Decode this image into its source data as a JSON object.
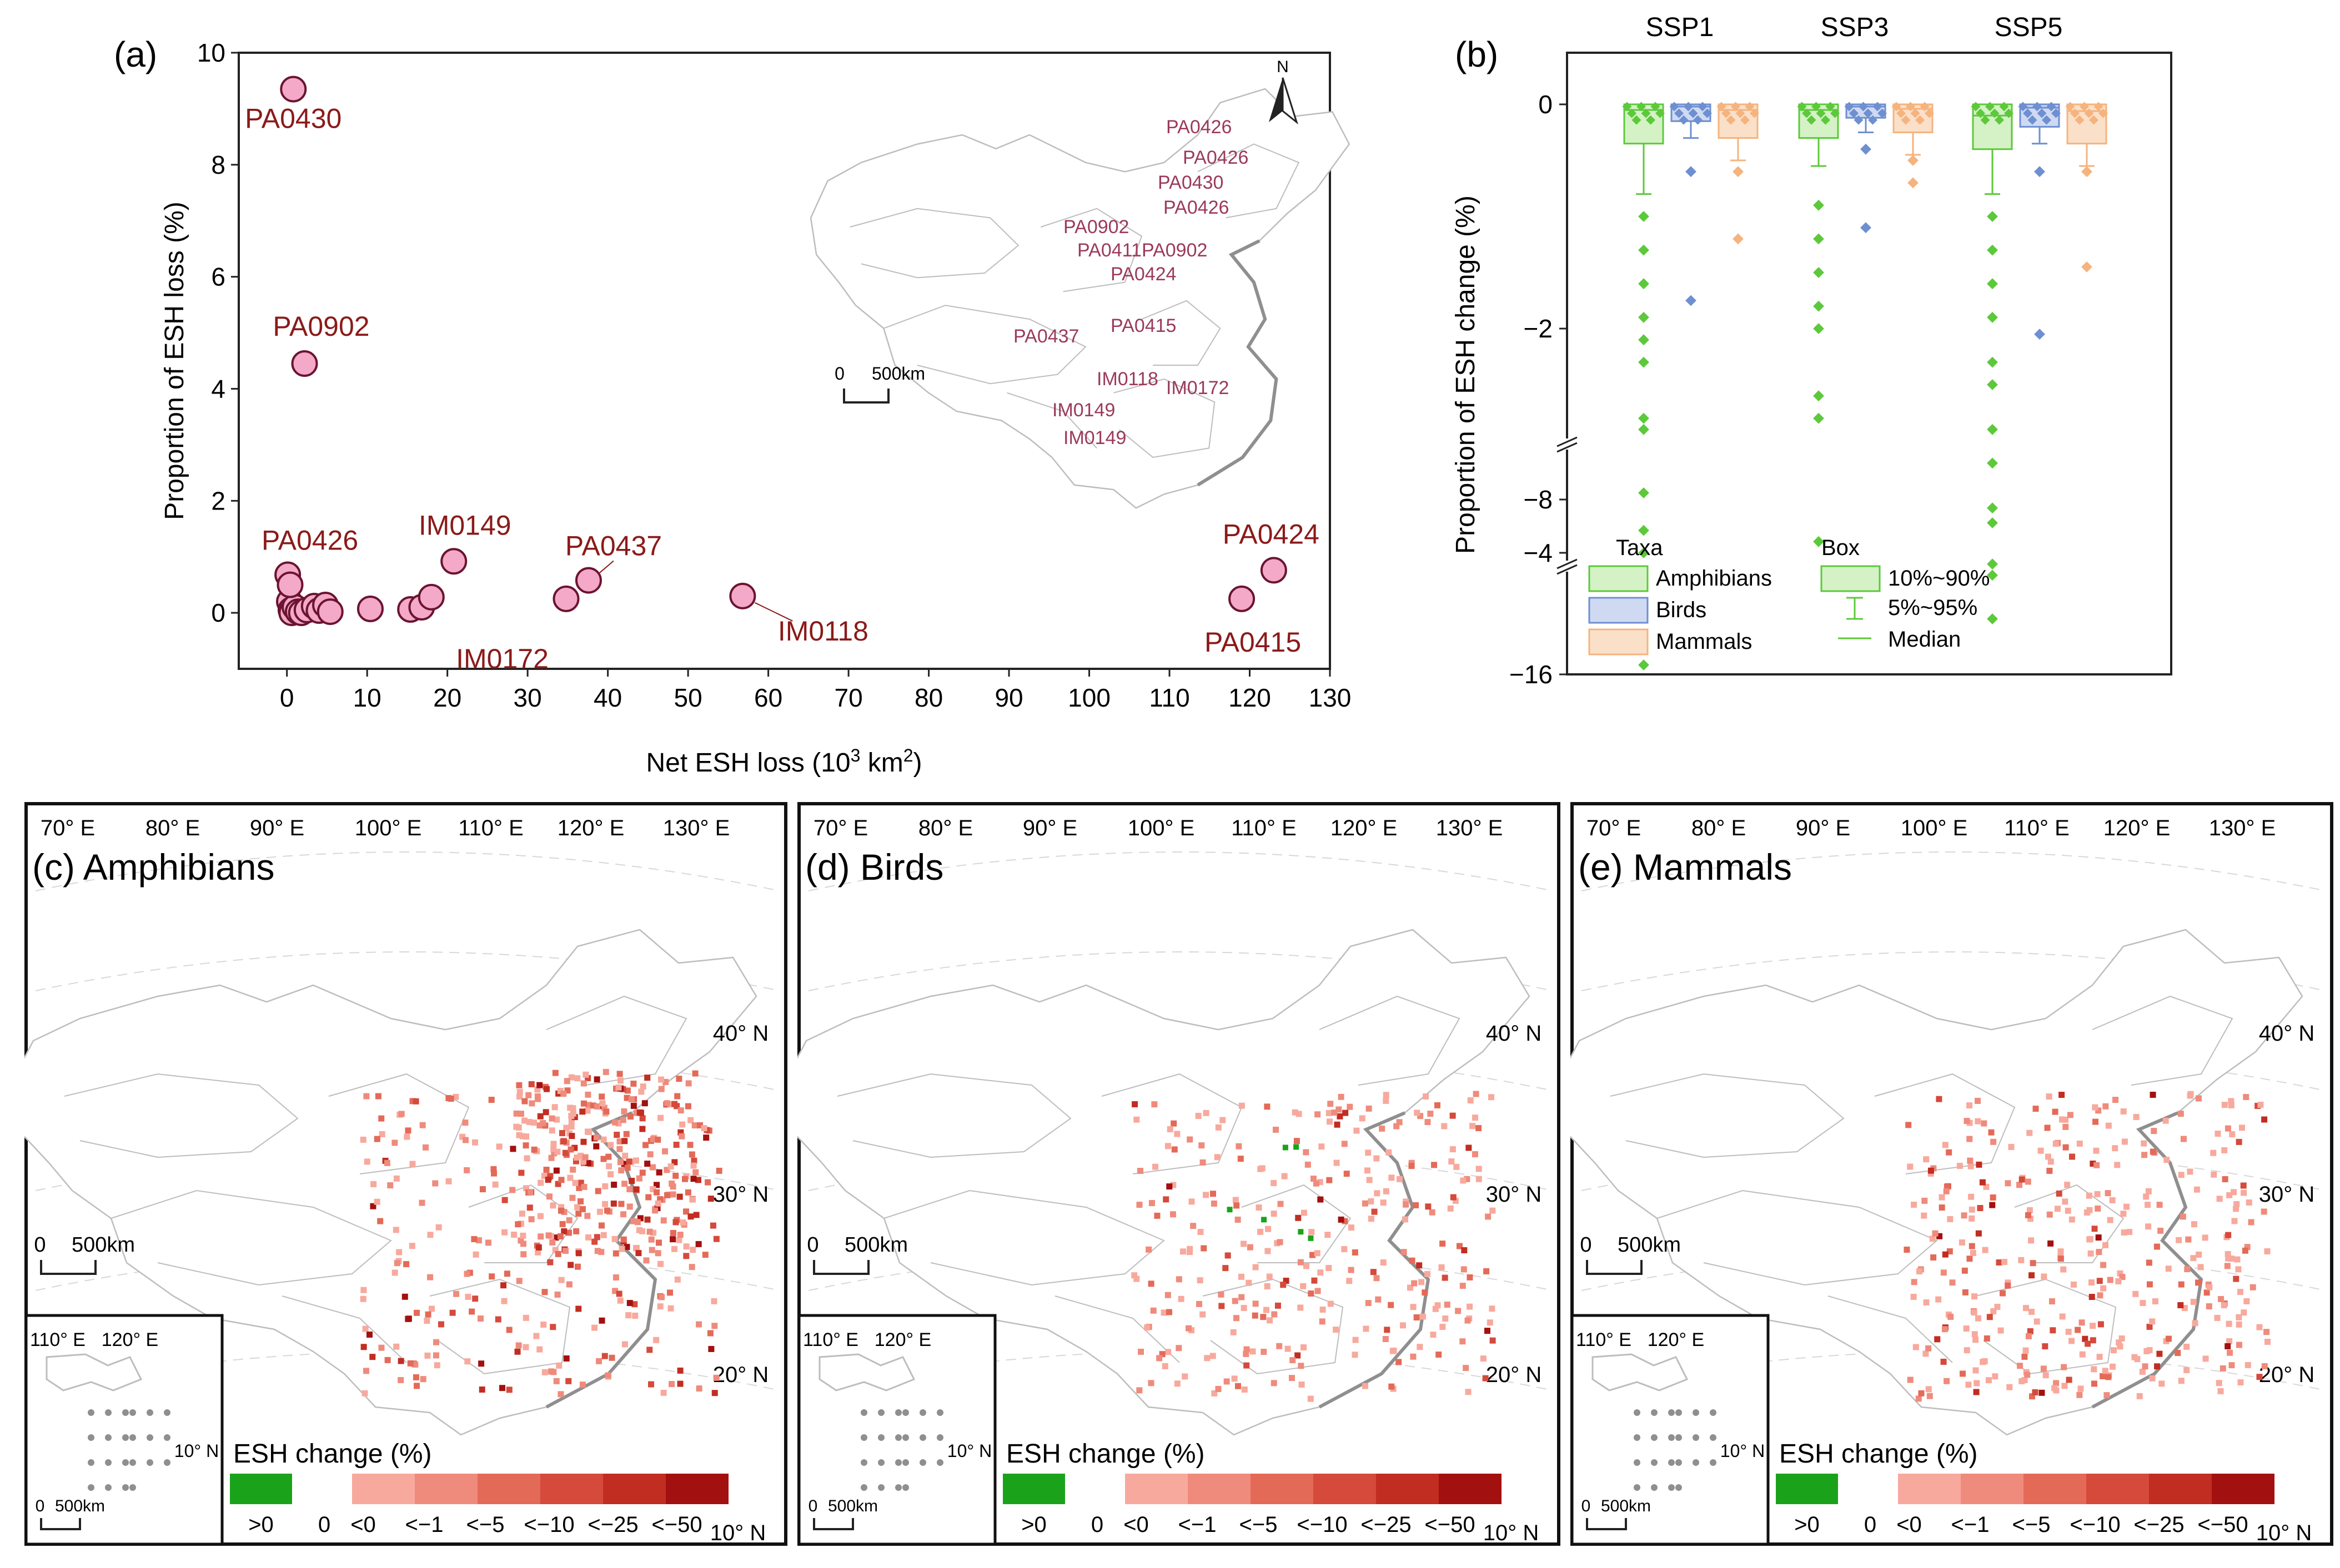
{
  "colors": {
    "point_fill": "#f4a9c8",
    "point_edge": "#6b1430",
    "label_text": "#8b1a1a",
    "map_label": "#9b3a5a",
    "map_line": "#bdbdbd",
    "coast": "#8f8f8f",
    "amph": "#5cc93a",
    "amph_fill": "#d4f2c6",
    "birds": "#6e8fd1",
    "birds_fill": "#cfdaf2",
    "mamm": "#f5b37e",
    "mamm_fill": "#fbe0c9",
    "pos": "#1aa31a",
    "neg": [
      "#f8a99d",
      "#ef8b7c",
      "#e46a58",
      "#d54a3b",
      "#c22d22",
      "#a31010"
    ]
  },
  "chart_data": [
    {
      "panel": "(a)",
      "type": "scatter",
      "xlabel": "Net ESH loss (10",
      "xlabel_sup": "3",
      "xlabel_tail": " km",
      "xlabel_sup2": "2",
      "xlabel_end": ")",
      "ylabel": "Proportion of ESH loss (%)",
      "xlim": [
        -6,
        130
      ],
      "ylim": [
        -1,
        10
      ],
      "xticks": [
        0,
        10,
        20,
        30,
        40,
        50,
        60,
        70,
        80,
        90,
        100,
        110,
        120,
        130
      ],
      "yticks": [
        0,
        2,
        4,
        6,
        8,
        10
      ],
      "points": [
        {
          "x": 0.8,
          "y": 9.35,
          "label": "PA0430"
        },
        {
          "x": 2.2,
          "y": 4.45,
          "label": "PA0902"
        },
        {
          "x": 0.1,
          "y": 0.68,
          "label": "PA0426"
        },
        {
          "x": 20.8,
          "y": 0.92,
          "label": "IM0149"
        },
        {
          "x": 34.8,
          "y": 0.25,
          "label": "IM0172"
        },
        {
          "x": 37.6,
          "y": 0.58,
          "label": "PA0437"
        },
        {
          "x": 56.8,
          "y": 0.3,
          "label": "IM0118"
        },
        {
          "x": 123,
          "y": 0.76,
          "label": "PA0424"
        },
        {
          "x": 119,
          "y": 0.25,
          "label": "PA0415"
        },
        {
          "x": 0.3,
          "y": 0.2,
          "label": ""
        },
        {
          "x": 0.5,
          "y": 0.05,
          "label": ""
        },
        {
          "x": 0.6,
          "y": 0.0,
          "label": ""
        },
        {
          "x": 1.0,
          "y": 0.1,
          "label": ""
        },
        {
          "x": 1.4,
          "y": 0.02,
          "label": ""
        },
        {
          "x": 1.8,
          "y": 0.0,
          "label": ""
        },
        {
          "x": 2.5,
          "y": 0.05,
          "label": ""
        },
        {
          "x": 3.4,
          "y": 0.12,
          "label": ""
        },
        {
          "x": 4.0,
          "y": 0.04,
          "label": ""
        },
        {
          "x": 4.8,
          "y": 0.14,
          "label": ""
        },
        {
          "x": 5.4,
          "y": 0.02,
          "label": ""
        },
        {
          "x": 10.4,
          "y": 0.07,
          "label": ""
        },
        {
          "x": 15.4,
          "y": 0.06,
          "label": ""
        },
        {
          "x": 16.8,
          "y": 0.1,
          "label": ""
        },
        {
          "x": 18.0,
          "y": 0.28,
          "label": ""
        },
        {
          "x": 0.4,
          "y": 0.5,
          "label": ""
        }
      ],
      "inset_labels": [
        "PA0426",
        "PA0426",
        "PA0430",
        "PA0426",
        "PA0902",
        "PA0411PA0902",
        "PA0424",
        "PA0415",
        "PA0437",
        "IM0118",
        "IM0172",
        "IM0149",
        "IM0149"
      ],
      "inset_north": "N",
      "inset_scale": [
        "0",
        "500km"
      ]
    },
    {
      "panel": "(b)",
      "type": "box",
      "ylabel": "Proportion of ESH change (%)",
      "groups": [
        "SSP1",
        "SSP3",
        "SSP5"
      ],
      "yticks_upper": [
        0,
        -2,
        -4
      ],
      "ytick_mid": -8,
      "ytick_bottom": -16,
      "series": [
        {
          "name": "Amphibians",
          "key": "amph",
          "boxes": [
            {
              "q10": -0.35,
              "q90": 0.0,
              "p5": -0.8,
              "median": -0.05,
              "outliers": [
                -1.0,
                -1.3,
                -1.6,
                -1.9,
                -2.1,
                -2.3,
                -2.8,
                -2.9,
                -3.8,
                -4.0,
                -5.0,
                -7.8
              ]
            },
            {
              "q10": -0.3,
              "q90": 0.0,
              "p5": -0.55,
              "median": -0.05,
              "outliers": [
                -0.9,
                -1.2,
                -1.5,
                -1.8,
                -2.0,
                -2.6,
                -2.8,
                -3.9
              ]
            },
            {
              "q10": -0.4,
              "q90": 0.0,
              "p5": -0.8,
              "median": -0.1,
              "outliers": [
                -1.0,
                -1.3,
                -1.6,
                -1.9,
                -2.3,
                -2.5,
                -2.9,
                -3.2,
                -3.6,
                -4.1,
                -4.2,
                -8.7,
                -13.5
              ]
            }
          ]
        },
        {
          "name": "Birds",
          "key": "birds",
          "boxes": [
            {
              "q10": -0.15,
              "q90": 0.0,
              "p5": -0.3,
              "median": -0.02,
              "outliers": [
                -0.6,
                -1.75
              ]
            },
            {
              "q10": -0.12,
              "q90": 0.0,
              "p5": -0.25,
              "median": -0.02,
              "outliers": [
                -0.4,
                -1.1
              ]
            },
            {
              "q10": -0.2,
              "q90": 0.0,
              "p5": -0.35,
              "median": -0.03,
              "outliers": [
                -0.6,
                -2.05
              ]
            }
          ]
        },
        {
          "name": "Mammals",
          "key": "mamm",
          "boxes": [
            {
              "q10": -0.3,
              "q90": 0.0,
              "p5": -0.5,
              "median": -0.05,
              "outliers": [
                -0.6,
                -1.2
              ]
            },
            {
              "q10": -0.25,
              "q90": 0.0,
              "p5": -0.45,
              "median": -0.04,
              "outliers": [
                -0.5,
                -0.7
              ]
            },
            {
              "q10": -0.35,
              "q90": 0.0,
              "p5": -0.55,
              "median": -0.06,
              "outliers": [
                -0.6,
                -1.45
              ]
            }
          ]
        }
      ],
      "legend_taxa_title": "Taxa",
      "legend_box_title": "Box",
      "legend_box_items": [
        "10%~90%",
        "5%~95%",
        "Median"
      ]
    }
  ],
  "maps": [
    {
      "title": "(c) Amphibians",
      "key": "amph"
    },
    {
      "title": "(d) Birds",
      "key": "birds"
    },
    {
      "title": "(e) Mammals",
      "key": "mamm"
    }
  ],
  "map_common": {
    "lon_labels": [
      "70° E",
      "80° E",
      "90° E",
      "100° E",
      "110° E",
      "120° E",
      "130° E"
    ],
    "lat_labels": [
      "40° N",
      "30° N",
      "20° N",
      "10° N"
    ],
    "inset_lon": [
      "110° E",
      "120° E"
    ],
    "inset_lat": "10° N",
    "scale": [
      "0",
      "500km"
    ],
    "inset_scale": [
      "0",
      "500km"
    ],
    "legend_title": "ESH change (%)",
    "legend_labels": [
      ">0",
      "0",
      "<0",
      "<−1",
      "<−5",
      "<−10",
      "<−25",
      "<−50"
    ]
  }
}
